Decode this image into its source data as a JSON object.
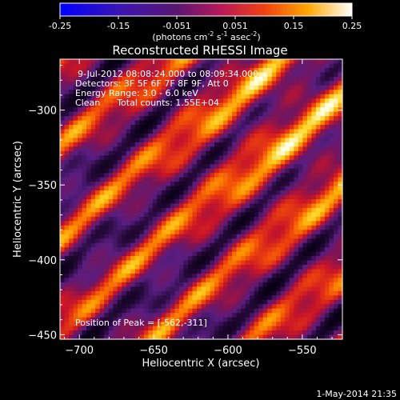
{
  "chart_data": {
    "type": "heatmap",
    "title": "Reconstructed RHESSI Image",
    "xlabel": "Heliocentric X (arcsec)",
    "ylabel": "Heliocentric Y (arcsec)",
    "xlim": [
      -713,
      -523
    ],
    "ylim": [
      -453,
      -266
    ],
    "x_ticks": [
      -700,
      -650,
      -600,
      -550
    ],
    "y_ticks": [
      -300,
      -350,
      -400,
      -450
    ],
    "colorbar": {
      "range": [
        -0.25,
        0.25
      ],
      "ticks": [
        "-0.25",
        "-0.15",
        "-0.051",
        "0.051",
        "0.15",
        "0.25"
      ],
      "unit_label": "(photons cm",
      "unit_exp1": "-2",
      "unit_mid": " s",
      "unit_exp2": "-1",
      "unit_mid2": " asec",
      "unit_exp3": "-2",
      "unit_close": ")"
    },
    "annotations": [
      "9-Jul-2012 08:08:24.000 to 08:09:34.000",
      "Detectors: 3F 5F 6F 7F 8F 9F, Att 0",
      "Energy Range: 3.0 - 6.0 keV",
      "Clean      Total counts: 1.55E+04"
    ],
    "peak_label": "Position of Peak = [-562,-311]",
    "peak": [
      -562,
      -311
    ]
  },
  "footer": {
    "timestamp": "1-May-2014 21:35"
  }
}
